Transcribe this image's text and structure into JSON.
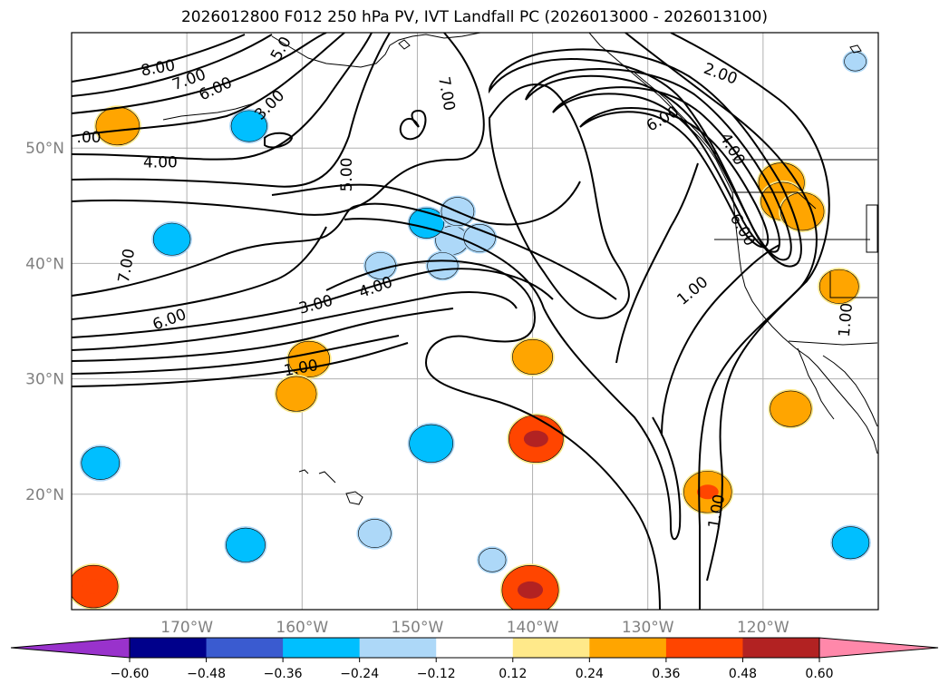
{
  "title": "2026012800 F012 250 hPa PV, IVT Landfall PC (2026013000 - 2026013100)",
  "chart_data": {
    "type": "contour_map",
    "title": "2026012800 F012 250 hPa PV, IVT Landfall PC (2026013000 - 2026013100)",
    "lon_range": [
      -180,
      -110
    ],
    "lat_range": [
      10,
      60
    ],
    "lon_ticks": [
      {
        "lon": -170,
        "label": "170°W"
      },
      {
        "lon": -160,
        "label": "160°W"
      },
      {
        "lon": -150,
        "label": "150°W"
      },
      {
        "lon": -140,
        "label": "140°W"
      },
      {
        "lon": -130,
        "label": "130°W"
      },
      {
        "lon": -120,
        "label": "120°W"
      }
    ],
    "lat_ticks": [
      {
        "lat": 50,
        "label": "50°N"
      },
      {
        "lat": 40,
        "label": "40°N"
      },
      {
        "lat": 30,
        "label": "30°N"
      },
      {
        "lat": 20,
        "label": "20°N"
      }
    ],
    "contour_labels": [
      {
        "text": "8.00",
        "lon": -172.5,
        "lat": 56.9,
        "angle": -10
      },
      {
        "text": "7.00",
        "lon": -169.8,
        "lat": 55.9,
        "angle": -20
      },
      {
        "text": "6.00",
        "lon": -167.5,
        "lat": 55.1,
        "angle": -25
      },
      {
        "text": "5.0",
        "lon": -161.8,
        "lat": 58.6,
        "angle": -60
      },
      {
        "text": "3.00",
        "lon": -162.8,
        "lat": 53.7,
        "angle": -45
      },
      {
        "text": ".00",
        "lon": -178.5,
        "lat": 50.9,
        "angle": 0
      },
      {
        "text": "4.00",
        "lon": -172.3,
        "lat": 48.7,
        "angle": 0
      },
      {
        "text": "5.00",
        "lon": -156.1,
        "lat": 47.7,
        "angle": -90
      },
      {
        "text": "7.00",
        "lon": -147.5,
        "lat": 54.7,
        "angle": 80
      },
      {
        "text": "2.00",
        "lon": -123.7,
        "lat": 56.4,
        "angle": 20
      },
      {
        "text": "6.00",
        "lon": -128.7,
        "lat": 52.5,
        "angle": -30
      },
      {
        "text": "4.00",
        "lon": -122.7,
        "lat": 49.9,
        "angle": 60
      },
      {
        "text": "6.00",
        "lon": -121.8,
        "lat": 42.9,
        "angle": 60
      },
      {
        "text": "7.00",
        "lon": -175.2,
        "lat": 39.8,
        "angle": -80
      },
      {
        "text": "4.00",
        "lon": -153.6,
        "lat": 37.9,
        "angle": -20
      },
      {
        "text": "3.00",
        "lon": -158.8,
        "lat": 36.4,
        "angle": -15
      },
      {
        "text": "6.00",
        "lon": -171.5,
        "lat": 35.1,
        "angle": -20
      },
      {
        "text": "1.00",
        "lon": -160.1,
        "lat": 30.9,
        "angle": -10
      },
      {
        "text": "1.00",
        "lon": -126.1,
        "lat": 37.6,
        "angle": -40
      },
      {
        "text": "1.00",
        "lon": -112.8,
        "lat": 35.1,
        "angle": -85
      },
      {
        "text": "1.00",
        "lon": -124.0,
        "lat": 18.5,
        "angle": -80
      }
    ],
    "colorbar": {
      "colors": [
        "#9932CC",
        "#00008B",
        "#3A5BD0",
        "#00BFFF",
        "#ADD8F8",
        "#FFFFFF",
        "#FFE98A",
        "#FFA500",
        "#FF4500",
        "#B22222",
        "#FF88AA"
      ],
      "ticks": [
        "−0.60",
        "−0.48",
        "−0.36",
        "−0.24",
        "−0.12",
        "0.12",
        "0.24",
        "0.36",
        "0.48",
        "0.60"
      ],
      "tick_values": [
        -0.6,
        -0.48,
        -0.36,
        -0.24,
        -0.12,
        0.12,
        0.24,
        0.36,
        0.48,
        0.6
      ],
      "extend": "both"
    },
    "blobs": [
      {
        "sign": "positive",
        "lon": -176.0,
        "lat": 51.9,
        "intensity": 0.4
      },
      {
        "sign": "negative",
        "lon": -164.6,
        "lat": 51.9,
        "intensity": -0.33
      },
      {
        "sign": "positive",
        "lon": -118.4,
        "lat": 47.0,
        "intensity": 0.42
      },
      {
        "sign": "positive",
        "lon": -118.3,
        "lat": 45.4,
        "intensity": 0.4
      },
      {
        "sign": "positive",
        "lon": -116.6,
        "lat": 44.5,
        "intensity": 0.4
      },
      {
        "sign": "negative",
        "lon": -171.3,
        "lat": 42.1,
        "intensity": -0.34
      },
      {
        "sign": "negative",
        "lon": -147.0,
        "lat": 42.0,
        "intensity": -0.3
      },
      {
        "sign": "negative",
        "lon": -149.2,
        "lat": 43.5,
        "intensity": -0.32
      },
      {
        "sign": "negative",
        "lon": -146.5,
        "lat": 44.5,
        "intensity": -0.3
      },
      {
        "sign": "negative",
        "lon": -147.8,
        "lat": 39.8,
        "intensity": -0.28
      },
      {
        "sign": "negative",
        "lon": -144.6,
        "lat": 42.2,
        "intensity": -0.29
      },
      {
        "sign": "negative",
        "lon": -153.2,
        "lat": 39.8,
        "intensity": -0.28
      },
      {
        "sign": "positive",
        "lon": -159.4,
        "lat": 31.7,
        "intensity": 0.38
      },
      {
        "sign": "positive",
        "lon": -160.5,
        "lat": 28.7,
        "intensity": 0.37
      },
      {
        "sign": "positive",
        "lon": -140.0,
        "lat": 31.9,
        "intensity": 0.37
      },
      {
        "sign": "negative",
        "lon": -148.8,
        "lat": 24.4,
        "intensity": -0.4
      },
      {
        "sign": "positive",
        "lon": -139.7,
        "lat": 24.8,
        "intensity": 0.5
      },
      {
        "sign": "negative",
        "lon": -177.5,
        "lat": 22.7,
        "intensity": -0.35
      },
      {
        "sign": "positive",
        "lon": -124.8,
        "lat": 20.2,
        "intensity": 0.44
      },
      {
        "sign": "negative",
        "lon": -164.9,
        "lat": 15.6,
        "intensity": -0.36
      },
      {
        "sign": "negative",
        "lon": -153.7,
        "lat": 16.6,
        "intensity": -0.3
      },
      {
        "sign": "negative",
        "lon": -143.5,
        "lat": 14.3,
        "intensity": -0.25
      },
      {
        "sign": "positive",
        "lon": -140.2,
        "lat": 11.7,
        "intensity": 0.52
      },
      {
        "sign": "positive",
        "lon": -178.1,
        "lat": 12.0,
        "intensity": 0.45
      },
      {
        "sign": "negative",
        "lon": -112.4,
        "lat": 15.8,
        "intensity": -0.34
      },
      {
        "sign": "positive",
        "lon": -117.6,
        "lat": 27.4,
        "intensity": 0.38
      },
      {
        "sign": "positive",
        "lon": -113.4,
        "lat": 38.0,
        "intensity": 0.36
      },
      {
        "sign": "negative",
        "lon": -112.0,
        "lat": 57.5,
        "intensity": -0.2
      }
    ]
  }
}
